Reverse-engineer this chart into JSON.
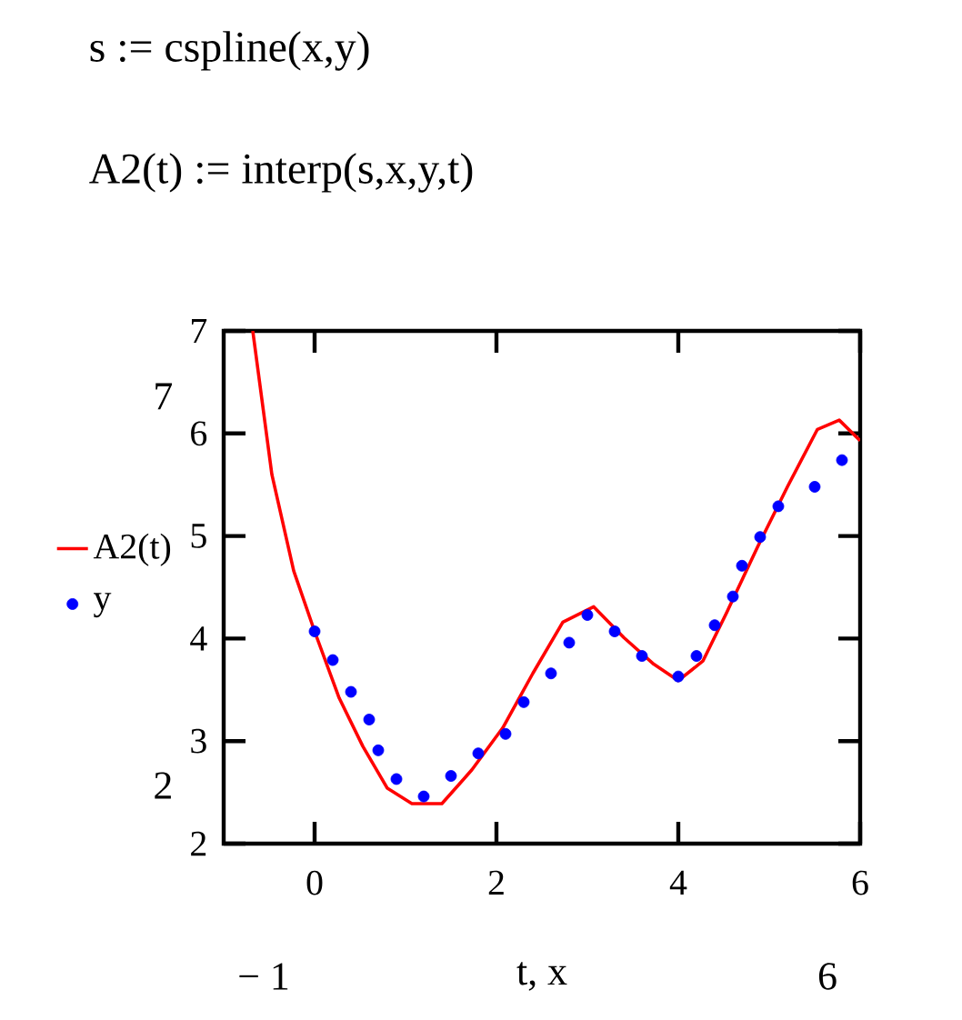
{
  "chart_data": {
    "type": "line",
    "title": "s := cspline(x,y)",
    "subtitle": "A2(t) := interp(s,x,y,t)",
    "xlabel": "t, x",
    "xlim": [
      -1,
      6
    ],
    "ylim": [
      2,
      7
    ],
    "xticks": [
      0,
      2,
      4,
      6
    ],
    "yticks": [
      2,
      3,
      4,
      5,
      6,
      7
    ],
    "grid": false,
    "legend": "left",
    "annotations": [
      "7",
      "2",
      "− 1",
      "6"
    ],
    "series": [
      {
        "name": "A2(t)",
        "type": "line",
        "color": "#ff0000",
        "marker": "none",
        "line_style": "solid",
        "x": [
          -0.68,
          -0.47,
          -0.23,
          0,
          0.27,
          0.53,
          0.8,
          1.07,
          1.4,
          1.73,
          2.07,
          2.4,
          2.73,
          3.07,
          3.4,
          3.73,
          4.0,
          4.27,
          4.53,
          4.87,
          5.2,
          5.53,
          5.77,
          6
        ],
        "values": [
          7,
          5.6,
          4.66,
          4.07,
          3.42,
          2.95,
          2.54,
          2.39,
          2.39,
          2.72,
          3.13,
          3.66,
          4.16,
          4.31,
          4.01,
          3.75,
          3.59,
          3.78,
          4.25,
          4.89,
          5.48,
          6.04,
          6.13,
          5.93
        ]
      },
      {
        "name": "y",
        "type": "scatter",
        "color": "#0000ff",
        "marker": "circle",
        "x": [
          0,
          0.2,
          0.4,
          0.6,
          0.7,
          0.9,
          1.2,
          1.5,
          1.8,
          2.1,
          2.3,
          2.6,
          2.8,
          3.0,
          3.3,
          3.6,
          4.0,
          4.2,
          4.4,
          4.6,
          4.7,
          4.9,
          5.1,
          5.5,
          5.8
        ],
        "values": [
          4.07,
          3.79,
          3.48,
          3.21,
          2.91,
          2.63,
          2.46,
          2.66,
          2.88,
          3.07,
          3.38,
          3.66,
          3.96,
          4.23,
          4.07,
          3.83,
          3.63,
          3.83,
          4.13,
          4.41,
          4.71,
          4.99,
          5.29,
          5.48,
          5.74
        ]
      }
    ]
  }
}
